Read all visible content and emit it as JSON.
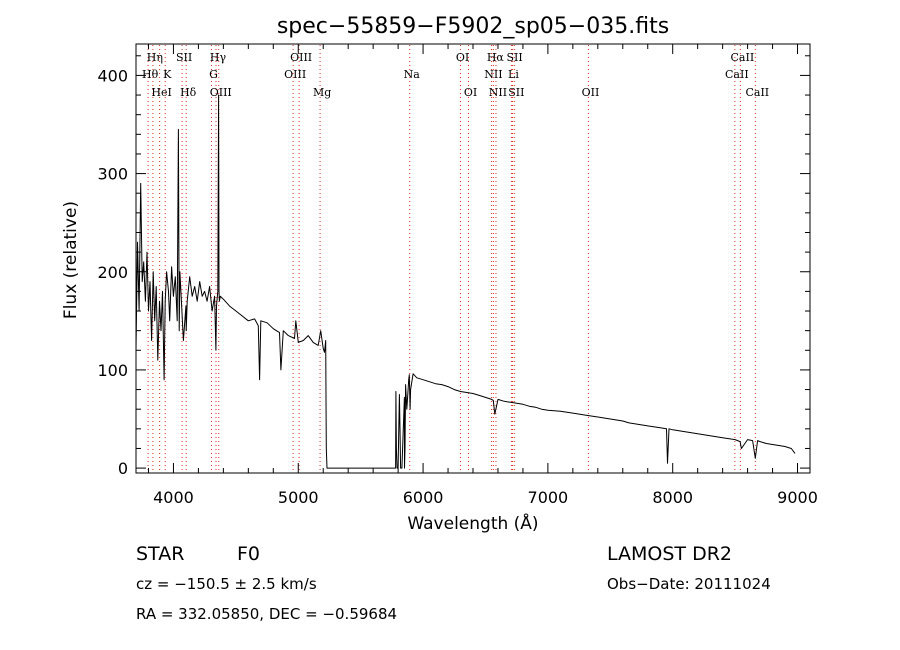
{
  "chart_data": {
    "type": "line",
    "title": "spec−55859−F5902_sp05−035.fits",
    "xlabel": "Wavelength (Å)",
    "ylabel": "Flux (relative)",
    "xlim": [
      3700,
      9100
    ],
    "ylim": [
      -5,
      432
    ],
    "xticks": [
      4000,
      5000,
      6000,
      7000,
      8000,
      9000
    ],
    "yticks": [
      0,
      100,
      200,
      300,
      400
    ],
    "grid": false,
    "series": [
      {
        "name": "flux",
        "color": "#000000",
        "x": [
          3700,
          3712,
          3725,
          3738,
          3750,
          3762,
          3775,
          3788,
          3800,
          3812,
          3825,
          3838,
          3850,
          3862,
          3875,
          3888,
          3900,
          3912,
          3925,
          3934,
          3945,
          3960,
          3970,
          3985,
          4000,
          4015,
          4030,
          4040,
          4046,
          4052,
          4060,
          4080,
          4100,
          4102,
          4110,
          4130,
          4150,
          4170,
          4190,
          4210,
          4230,
          4250,
          4270,
          4290,
          4310,
          4330,
          4340,
          4345,
          4355,
          4362,
          4365,
          4368,
          4375,
          4400,
          4450,
          4500,
          4550,
          4600,
          4650,
          4680,
          4690,
          4700,
          4750,
          4800,
          4850,
          4861,
          4880,
          4920,
          4970,
          4980,
          5000,
          5040,
          5080,
          5120,
          5160,
          5180,
          5200,
          5210,
          5220,
          5222,
          5225,
          5230,
          5235,
          5240,
          5500,
          5780,
          5782,
          5786,
          5792,
          5796,
          5800,
          5810,
          5815,
          5820,
          5830,
          5850,
          5851,
          5855,
          5860,
          5870,
          5880,
          5885,
          5890,
          5896,
          5900,
          5920,
          5950,
          6000,
          6050,
          6100,
          6150,
          6200,
          6250,
          6300,
          6350,
          6400,
          6450,
          6500,
          6550,
          6563,
          6575,
          6600,
          6650,
          6700,
          6750,
          6800,
          6850,
          6900,
          6950,
          7000,
          7100,
          7200,
          7300,
          7400,
          7500,
          7600,
          7650,
          7700,
          7800,
          7900,
          7950,
          7958,
          7970,
          8000,
          8100,
          8200,
          8300,
          8400,
          8500,
          8540,
          8550,
          8600,
          8640,
          8662,
          8680,
          8700,
          8750,
          8800,
          8850,
          8900,
          8950,
          8980
        ],
        "y": [
          120,
          230,
          160,
          290,
          190,
          210,
          170,
          220,
          160,
          190,
          130,
          200,
          150,
          185,
          110,
          170,
          140,
          180,
          90,
          170,
          200,
          180,
          150,
          205,
          175,
          195,
          150,
          345,
          140,
          200,
          180,
          130,
          165,
          140,
          170,
          195,
          175,
          185,
          170,
          190,
          175,
          180,
          170,
          185,
          160,
          175,
          120,
          165,
          180,
          380,
          180,
          170,
          175,
          172,
          165,
          160,
          155,
          150,
          152,
          145,
          90,
          150,
          148,
          142,
          138,
          100,
          140,
          135,
          132,
          150,
          128,
          130,
          135,
          128,
          125,
          140,
          122,
          118,
          130,
          70,
          20,
          0,
          0,
          0,
          0,
          0,
          78,
          20,
          0,
          0,
          0,
          75,
          40,
          0,
          0,
          72,
          0,
          20,
          85,
          60,
          80,
          90,
          95,
          60,
          80,
          96,
          92,
          90,
          88,
          86,
          85,
          83,
          80,
          78,
          77,
          76,
          74,
          72,
          70,
          69,
          55,
          70,
          68,
          67,
          66,
          65,
          63,
          62,
          60,
          59,
          58,
          56,
          54,
          52,
          50,
          48,
          46,
          45,
          43,
          41,
          40,
          5,
          40,
          39,
          37,
          35,
          33,
          31,
          29,
          27,
          20,
          29,
          28,
          10,
          28,
          27,
          25,
          24,
          23,
          22,
          20,
          15
        ]
      }
    ],
    "line_markers": [
      {
        "label": "Hη",
        "wavelength": 3835,
        "row": 1
      },
      {
        "label": "Hθ",
        "wavelength": 3797,
        "row": 2
      },
      {
        "label": "K",
        "wavelength": 3934,
        "row": 2
      },
      {
        "label": "HeI",
        "wavelength": 3889,
        "row": 3
      },
      {
        "label": "SII",
        "wavelength": 4069,
        "row": 1
      },
      {
        "label": "Hδ",
        "wavelength": 4102,
        "row": 3
      },
      {
        "label": "Hγ",
        "wavelength": 4341,
        "row": 1
      },
      {
        "label": "G",
        "wavelength": 4305,
        "row": 2
      },
      {
        "label": "OIII",
        "wavelength": 4363,
        "row": 3
      },
      {
        "label": "OIII",
        "wavelength": 5007,
        "row": 1
      },
      {
        "label": "OIII",
        "wavelength": 4959,
        "row": 2
      },
      {
        "label": "Mg",
        "wavelength": 5175,
        "row": 3
      },
      {
        "label": "Na",
        "wavelength": 5893,
        "row": 2
      },
      {
        "label": "OI",
        "wavelength": 6300,
        "row": 1
      },
      {
        "label": "OI",
        "wavelength": 6364,
        "row": 3
      },
      {
        "label": "Hα",
        "wavelength": 6563,
        "row": 1
      },
      {
        "label": "NII",
        "wavelength": 6548,
        "row": 2
      },
      {
        "label": "NII",
        "wavelength": 6584,
        "row": 3
      },
      {
        "label": "SII",
        "wavelength": 6717,
        "row": 1
      },
      {
        "label": "Li",
        "wavelength": 6708,
        "row": 2
      },
      {
        "label": "SII",
        "wavelength": 6731,
        "row": 3
      },
      {
        "label": "OII",
        "wavelength": 7325,
        "row": 3
      },
      {
        "label": "CaII",
        "wavelength": 8542,
        "row": 1
      },
      {
        "label": "CaII",
        "wavelength": 8498,
        "row": 2
      },
      {
        "label": "CaII",
        "wavelength": 8662,
        "row": 3
      }
    ]
  },
  "info": {
    "object_class": "STAR",
    "subclass": "F0",
    "survey": "LAMOST  DR2",
    "velocity": "cz = −150.5 ± 2.5 km/s",
    "obs_date": "Obs−Date: 20111024",
    "coords": "RA = 332.05850, DEC =  −0.59684"
  }
}
